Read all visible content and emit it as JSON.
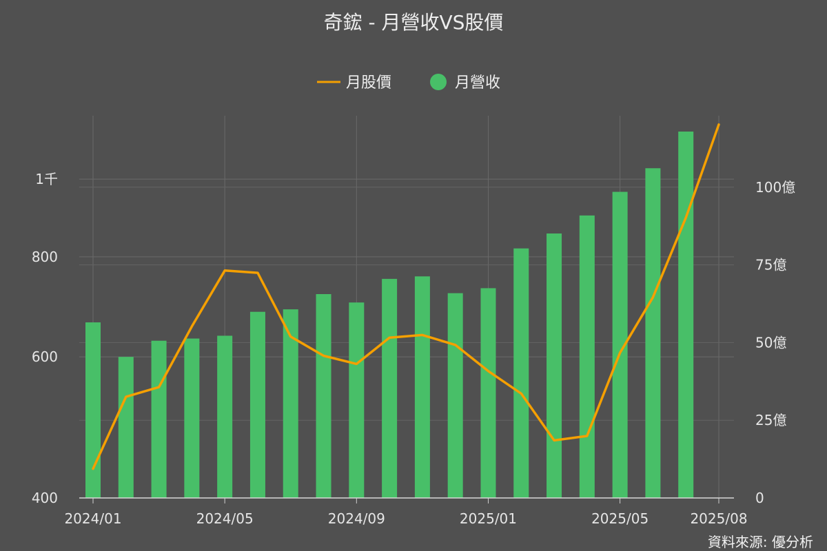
{
  "chart_data": {
    "type": "bar+line",
    "title": "奇鋐 - 月營收VS股價",
    "source": "資料來源: 優分析",
    "legend": [
      {
        "label": "月股價",
        "kind": "line",
        "color": "#f5a000"
      },
      {
        "label": "月營收",
        "kind": "dot",
        "color": "#48bf68"
      }
    ],
    "x_ticks": [
      "2024/01",
      "2024/05",
      "2024/09",
      "2025/01",
      "2025/05",
      "2025/08"
    ],
    "left_axis": {
      "ticks": [
        {
          "v": 400,
          "label": "400"
        },
        {
          "v": 600,
          "label": "600"
        },
        {
          "v": 800,
          "label": "800"
        },
        {
          "v": 1000,
          "label": "1千"
        }
      ],
      "range": [
        400,
        1200
      ],
      "scale": "log"
    },
    "right_axis": {
      "ticks": [
        {
          "v": 0,
          "label": "0"
        },
        {
          "v": 25,
          "label": "25億"
        },
        {
          "v": 50,
          "label": "50億"
        },
        {
          "v": 75,
          "label": "75億"
        },
        {
          "v": 100,
          "label": "100億"
        }
      ],
      "range": [
        0,
        123
      ],
      "unit": "億"
    },
    "bars": {
      "name": "月營收",
      "color": "#48bf68",
      "months": [
        "2024/01",
        "2024/02",
        "2024/03",
        "2024/04",
        "2024/05",
        "2024/06",
        "2024/07",
        "2024/08",
        "2024/09",
        "2024/10",
        "2024/11",
        "2024/12",
        "2025/01",
        "2025/02",
        "2025/03",
        "2025/04",
        "2025/05",
        "2025/06",
        "2025/07"
      ],
      "values": [
        56.5,
        45.4,
        50.6,
        51.3,
        52.2,
        59.9,
        60.7,
        65.6,
        62.9,
        70.5,
        71.3,
        65.9,
        67.5,
        80.3,
        85.1,
        90.9,
        98.5,
        106.1,
        117.9
      ]
    },
    "line": {
      "name": "月股價",
      "color": "#f5a000",
      "months": [
        "2024/01",
        "2024/02",
        "2024/03",
        "2024/04",
        "2024/05",
        "2024/06",
        "2024/07",
        "2024/08",
        "2024/09",
        "2024/10",
        "2024/11",
        "2024/12",
        "2025/01",
        "2025/02",
        "2025/03",
        "2025/04",
        "2025/05",
        "2025/06",
        "2025/07",
        "2025/08"
      ],
      "values": [
        435,
        535,
        550,
        655,
        769,
        764,
        636,
        602,
        588,
        634,
        639,
        621,
        576,
        540,
        472,
        478,
        607,
        712,
        895,
        1170
      ]
    }
  }
}
